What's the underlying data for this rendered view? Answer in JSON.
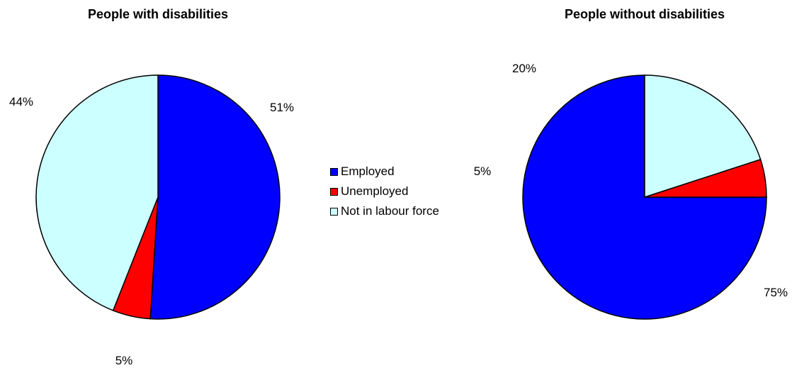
{
  "chart_data": [
    {
      "type": "pie",
      "title": "People with disabilities",
      "categories": [
        "Employed",
        "Unemployed",
        "Not in labour force"
      ],
      "values": [
        51,
        5,
        44
      ],
      "labels": [
        "51%",
        "5%",
        "44%"
      ]
    },
    {
      "type": "pie",
      "title": "People without disabilities",
      "categories": [
        "Employed",
        "Unemployed",
        "Not in labour force"
      ],
      "values": [
        75,
        5,
        20
      ],
      "labels": [
        "75%",
        "5%",
        "20%"
      ]
    }
  ],
  "legend": {
    "placement": "center",
    "items": [
      {
        "label": "Employed",
        "color": "#0000FF"
      },
      {
        "label": "Unemployed",
        "color": "#FF0000"
      },
      {
        "label": "Not in labour force",
        "color": "#CCFFFF"
      }
    ]
  }
}
